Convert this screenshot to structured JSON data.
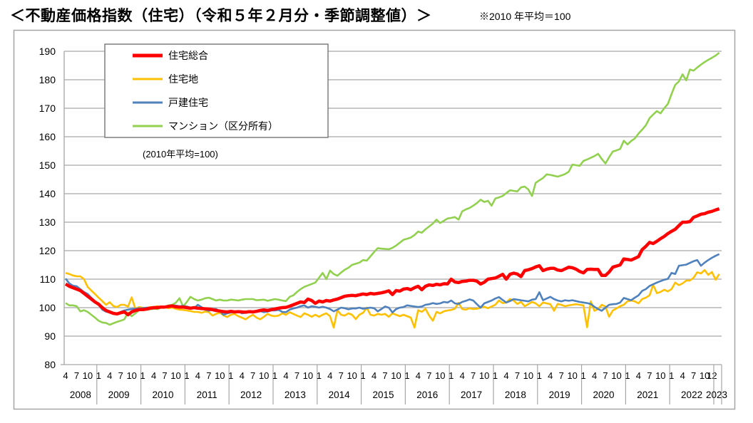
{
  "title": "＜不動産価格指数（住宅）（令和５年２月分・季節調整値）＞",
  "note": "※2010 年平均＝100",
  "chart_data": {
    "type": "line",
    "title": "＜不動産価格指数（住宅）（令和５年２月分・季節調整値）＞",
    "annotation": "(2010年平均=100)",
    "ylim": [
      80,
      190
    ],
    "yticks": [
      80,
      90,
      100,
      110,
      120,
      130,
      140,
      150,
      160,
      170,
      180,
      190
    ],
    "grid": true,
    "legend_position": "top-left",
    "x_start": "2008-04",
    "x_end": "2023-02",
    "x_frequency": "monthly",
    "years": [
      {
        "label": "2008",
        "months": [
          "4",
          "7",
          "10"
        ]
      },
      {
        "label": "2009",
        "months": [
          "1",
          "4",
          "7",
          "10"
        ]
      },
      {
        "label": "2010",
        "months": [
          "1",
          "4",
          "7",
          "10"
        ]
      },
      {
        "label": "2011",
        "months": [
          "1",
          "4",
          "7",
          "10"
        ]
      },
      {
        "label": "2012",
        "months": [
          "1",
          "4",
          "7",
          "10"
        ]
      },
      {
        "label": "2013",
        "months": [
          "1",
          "4",
          "7",
          "10"
        ]
      },
      {
        "label": "2014",
        "months": [
          "1",
          "4",
          "7",
          "10"
        ]
      },
      {
        "label": "2015",
        "months": [
          "1",
          "4",
          "7",
          "10"
        ]
      },
      {
        "label": "2016",
        "months": [
          "1",
          "4",
          "7",
          "10"
        ]
      },
      {
        "label": "2017",
        "months": [
          "1",
          "4",
          "7",
          "10"
        ]
      },
      {
        "label": "2018",
        "months": [
          "1",
          "4",
          "7",
          "10"
        ]
      },
      {
        "label": "2019",
        "months": [
          "1",
          "4",
          "7",
          "10"
        ]
      },
      {
        "label": "2020",
        "months": [
          "1",
          "4",
          "7",
          "10"
        ]
      },
      {
        "label": "2021",
        "months": [
          "1",
          "4",
          "7",
          "10"
        ]
      },
      {
        "label": "2022",
        "months": [
          "1",
          "4",
          "7",
          "10",
          "12"
        ]
      },
      {
        "label": "2023",
        "months": []
      }
    ],
    "series": [
      {
        "name": "住宅総合",
        "color": "#ff0000",
        "values": [
          108.3,
          107.5,
          107,
          106.5,
          106,
          105,
          104,
          103,
          102,
          101.2,
          100,
          99,
          98.5,
          98,
          97.8,
          98.2,
          98.5,
          97.5,
          98.5,
          99,
          99.3,
          99.3,
          99.5,
          99.8,
          100,
          100,
          100.2,
          100.2,
          100.4,
          100.6,
          100.3,
          100.2,
          100.2,
          100,
          99.8,
          100,
          99.8,
          99.7,
          99.6,
          99.5,
          99.3,
          99,
          98.8,
          98.6,
          98.5,
          98.7,
          98.5,
          98.6,
          98.5,
          98.4,
          98.6,
          98.5,
          98.7,
          99,
          99.2,
          99,
          99.3,
          99.5,
          99.8,
          100,
          100.1,
          100.5,
          101,
          101.5,
          102,
          101.8,
          103,
          102.5,
          101.5,
          102.3,
          102,
          102.5,
          102.3,
          102.7,
          103,
          103.5,
          104,
          104.2,
          104.3,
          104.2,
          104.5,
          104.8,
          104.6,
          105,
          104.8,
          105,
          105.2,
          105.5,
          105.9,
          104.6,
          106,
          105.8,
          106.5,
          106.7,
          106.3,
          107,
          107.5,
          106.3,
          107.5,
          108,
          107.8,
          108.2,
          108,
          108.4,
          108.3,
          110,
          109,
          108.8,
          109.2,
          109.3,
          109.6,
          109.6,
          109.3,
          108.3,
          108.9,
          110,
          110.2,
          110.4,
          111,
          111.7,
          110,
          111.7,
          112.1,
          111.8,
          110.9,
          113,
          113.3,
          113.7,
          114.3,
          114.7,
          113,
          113.5,
          113.8,
          113.8,
          113.2,
          113,
          113.6,
          114.2,
          114,
          113.5,
          112.7,
          112.2,
          113.4,
          113.5,
          113.4,
          113.4,
          111.3,
          111.3,
          112.5,
          114.2,
          114.6,
          115,
          117.1,
          116.9,
          116.7,
          117.3,
          117.9,
          120.4,
          121.5,
          122.9,
          122.5,
          123.3,
          124.2,
          125,
          126,
          126.8,
          127.5,
          128.8,
          130,
          130,
          130.2,
          131.7,
          132.2,
          132.8,
          133,
          133.5,
          133.8,
          134.3,
          134.7
        ]
      },
      {
        "name": "住宅地",
        "color": "#ffc000",
        "values": [
          112.2,
          111.8,
          111.3,
          111,
          111,
          110,
          107.3,
          106,
          104.8,
          103.5,
          102.3,
          101,
          101.9,
          100.6,
          100.2,
          101,
          101,
          100.4,
          103.6,
          99.5,
          100.2,
          100,
          99.8,
          100.2,
          100.2,
          100.5,
          100,
          100.2,
          99.8,
          100,
          99.6,
          99.3,
          99.2,
          99,
          98.8,
          98.5,
          98.5,
          98.2,
          98.6,
          98.4,
          97.2,
          97.8,
          98.2,
          97.3,
          96.7,
          97.5,
          97.8,
          97,
          96.5,
          95.9,
          96.8,
          97.5,
          96.5,
          95.9,
          96.8,
          97.8,
          97.2,
          97,
          97.2,
          98,
          97.5,
          98.4,
          97.8,
          97.2,
          96.7,
          98,
          97.5,
          96.8,
          97.5,
          96.8,
          97.5,
          98,
          97,
          93,
          99.1,
          97.5,
          97.2,
          98,
          97.5,
          96,
          97.5,
          98.2,
          100,
          97.5,
          97.2,
          97.8,
          97.5,
          97.8,
          96.8,
          98,
          97.5,
          97,
          97.5,
          97,
          96.5,
          93,
          99.1,
          98.5,
          99.6,
          97.2,
          95.4,
          98.5,
          98,
          98.7,
          99,
          99.2,
          99.6,
          101.7,
          99.5,
          99.3,
          99.8,
          99.5,
          99.6,
          100,
          100.3,
          99.8,
          100.4,
          101,
          102.5,
          101.6,
          101.8,
          103,
          102.5,
          101.3,
          102,
          100.5,
          101.2,
          102,
          101.5,
          100.5,
          101.8,
          101.5,
          101.2,
          98.9,
          101.3,
          101,
          100.5,
          100.8,
          101,
          101.2,
          101,
          100.8,
          93.1,
          102.2,
          98.9,
          99.5,
          101,
          100.4,
          96.8,
          99,
          99.7,
          100.5,
          101,
          102.2,
          102.5,
          102.2,
          101.5,
          103,
          103.5,
          104.3,
          108,
          105.1,
          105.5,
          106.3,
          105.7,
          106.5,
          108.8,
          107.9,
          108.5,
          109.5,
          109.5,
          110.5,
          112.4,
          112,
          113.2,
          111.5,
          112.5,
          109.8,
          111.8
        ]
      },
      {
        "name": "戸建住宅",
        "color": "#4f81bd",
        "values": [
          110.2,
          108.5,
          107.7,
          107.5,
          106.5,
          105.5,
          104.8,
          103.5,
          102.3,
          101,
          99.3,
          98.6,
          98.3,
          98,
          97.7,
          98.5,
          99,
          99.3,
          99.5,
          99.6,
          99.8,
          99.8,
          100,
          100,
          100.2,
          100.2,
          100,
          100.3,
          100.5,
          100.8,
          100.7,
          100.5,
          100.6,
          100.4,
          100,
          99.8,
          101,
          100.2,
          99.3,
          98.9,
          99.5,
          99.5,
          98.8,
          97.5,
          98,
          98.3,
          98.5,
          98.7,
          98,
          98.2,
          98.4,
          98.6,
          98.5,
          98.8,
          98.4,
          98.6,
          99,
          99,
          99.2,
          98.5,
          98.4,
          99.3,
          99.7,
          100,
          100.5,
          100.8,
          100,
          100.5,
          100.3,
          100,
          100.3,
          100,
          99.5,
          98.7,
          99.3,
          100,
          99.8,
          99.4,
          99.7,
          99.7,
          100,
          99.6,
          99.8,
          100,
          99.8,
          98.7,
          99.5,
          100.4,
          100,
          98.3,
          99.5,
          100,
          100.2,
          100.8,
          100.6,
          100.4,
          100.2,
          100.4,
          101,
          101.2,
          101.6,
          101.3,
          101.5,
          102,
          101.8,
          102.5,
          101.5,
          101.3,
          102,
          102.4,
          102.9,
          102.5,
          101.2,
          100,
          101.5,
          102,
          102.5,
          103.2,
          103.7,
          102.7,
          101.8,
          102.3,
          103,
          102.8,
          102.6,
          102.4,
          102.2,
          102.8,
          103,
          105.4,
          102.6,
          103.2,
          103.8,
          103,
          102.5,
          102.2,
          102.6,
          102.4,
          102.6,
          102.3,
          102,
          101.8,
          101.6,
          101.3,
          100.3,
          99.5,
          98.9,
          100,
          101,
          101.2,
          101.3,
          101.8,
          103.4,
          103,
          102.6,
          103.5,
          104.3,
          105.9,
          106.5,
          107.6,
          108.2,
          108.8,
          109.3,
          109.8,
          110.1,
          112.2,
          111.8,
          114.7,
          114.9,
          115.1,
          115.7,
          116.3,
          116.7,
          114.7,
          115.8,
          116.7,
          117.5,
          118.2,
          118.8
        ]
      },
      {
        "name": "マンション（区分所有）",
        "color": "#92d050",
        "values": [
          101.6,
          100.8,
          100.8,
          100.5,
          98.7,
          99.1,
          98.5,
          97.5,
          96.5,
          95.4,
          94.8,
          94.6,
          94,
          94.5,
          95,
          95.4,
          95.9,
          98.3,
          97,
          98,
          99.1,
          99.2,
          99.2,
          99.4,
          99.6,
          99.5,
          100,
          100.3,
          100.8,
          101,
          101.7,
          103.3,
          100.4,
          102,
          103.8,
          103,
          102.5,
          102.8,
          103.3,
          103.5,
          103,
          102.5,
          102.8,
          102.5,
          102.5,
          102.8,
          102.7,
          102.5,
          102.8,
          103,
          103,
          103,
          102.6,
          102.7,
          102.8,
          102.4,
          102.7,
          103,
          102.8,
          102.5,
          102.3,
          103.8,
          104.3,
          105.5,
          106.5,
          107.3,
          107.8,
          108.3,
          108.8,
          110.5,
          112.2,
          110,
          113,
          111.8,
          111.2,
          112.3,
          113.3,
          114,
          115,
          115.4,
          115.8,
          116.7,
          116.5,
          118,
          119.5,
          120.9,
          120.7,
          120.6,
          120.5,
          121,
          121.8,
          122.8,
          123.8,
          124.2,
          124.6,
          125.5,
          126.7,
          126.3,
          127.5,
          128.5,
          129.5,
          130.9,
          129.7,
          130.5,
          131.3,
          131.5,
          131.8,
          130.9,
          133.8,
          134.5,
          135,
          135.8,
          136.7,
          137.9,
          137.1,
          137.5,
          135.8,
          138.3,
          138.7,
          139.2,
          140.2,
          141.2,
          141,
          140.8,
          142.2,
          142.5,
          141.5,
          139.2,
          143.8,
          144.7,
          145.5,
          146.8,
          146.6,
          146.3,
          146,
          146.4,
          146.9,
          147.7,
          150.2,
          150,
          149.8,
          151.5,
          152,
          152.6,
          153.2,
          154,
          152.2,
          150.6,
          152.8,
          154.8,
          155.2,
          155.7,
          158.6,
          157.3,
          158.5,
          159.4,
          161.1,
          162.5,
          164,
          166.5,
          167.8,
          169,
          168.2,
          170,
          171.5,
          175,
          178.2,
          179.4,
          181.9,
          179.8,
          183.6,
          183.2,
          184.3,
          185.3,
          186.2,
          187,
          187.7,
          188.5,
          189.5
        ]
      }
    ]
  }
}
